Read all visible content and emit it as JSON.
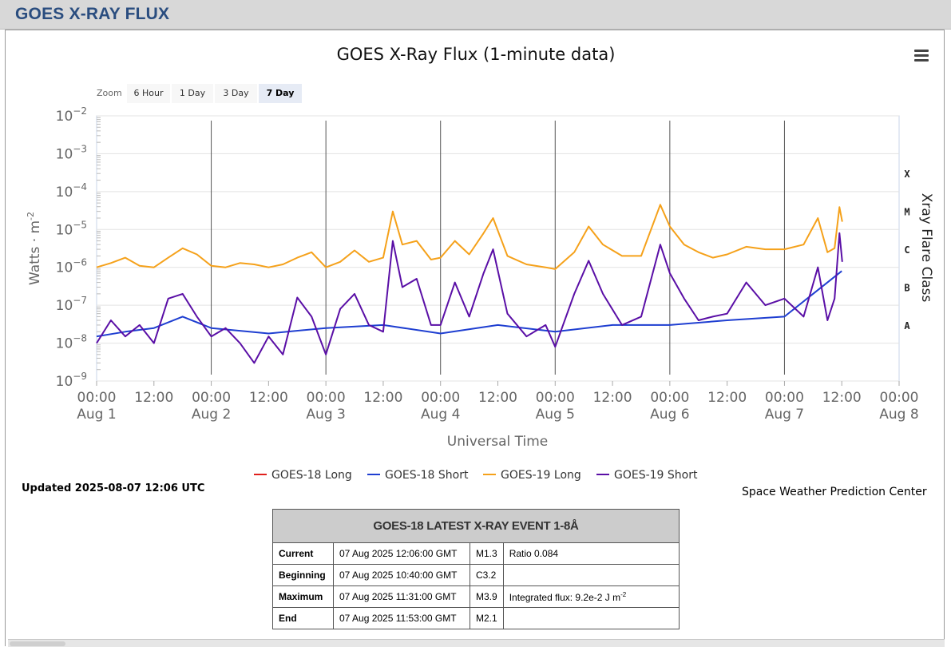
{
  "header": {
    "title": "GOES X-RAY FLUX"
  },
  "zoom": {
    "label": "Zoom",
    "buttons": [
      "6 Hour",
      "1 Day",
      "3 Day",
      "7 Day"
    ],
    "active": "7 Day"
  },
  "updated": "Updated 2025-08-07 12:06 UTC",
  "source": "Space Weather Prediction Center",
  "colors": {
    "g18_long": "#e0201c",
    "g18_short": "#1f3fd1",
    "g19_long": "#f5a11a",
    "g19_short": "#5a0fa6",
    "header": "#2a4d7f"
  },
  "chart_data": {
    "type": "line",
    "title": "GOES X-Ray Flux (1-minute data)",
    "xlabel": "Universal Time",
    "ylabel": "Watts · m",
    "ylabel_sup": "-2",
    "y2label": "Xray Flare Class",
    "yscale": "log",
    "ylim": [
      1e-09,
      0.01
    ],
    "xlim": [
      "2025-08-01T00:00",
      "2025-08-08T00:00"
    ],
    "y_ticks": [
      {
        "v": 0.01,
        "base": "10",
        "exp": "−2"
      },
      {
        "v": 0.001,
        "base": "10",
        "exp": "−3"
      },
      {
        "v": 0.0001,
        "base": "10",
        "exp": "−4"
      },
      {
        "v": 1e-05,
        "base": "10",
        "exp": "−5"
      },
      {
        "v": 1e-06,
        "base": "10",
        "exp": "−6"
      },
      {
        "v": 1e-07,
        "base": "10",
        "exp": "−7"
      },
      {
        "v": 1e-08,
        "base": "10",
        "exp": "−8"
      },
      {
        "v": 1e-09,
        "base": "10",
        "exp": "−9"
      }
    ],
    "x_ticks": [
      {
        "t": "2025-08-01T00:00",
        "time": "00:00",
        "date": "Aug 1"
      },
      {
        "t": "2025-08-01T12:00",
        "time": "12:00",
        "date": ""
      },
      {
        "t": "2025-08-02T00:00",
        "time": "00:00",
        "date": "Aug 2"
      },
      {
        "t": "2025-08-02T12:00",
        "time": "12:00",
        "date": ""
      },
      {
        "t": "2025-08-03T00:00",
        "time": "00:00",
        "date": "Aug 3"
      },
      {
        "t": "2025-08-03T12:00",
        "time": "12:00",
        "date": ""
      },
      {
        "t": "2025-08-04T00:00",
        "time": "00:00",
        "date": "Aug 4"
      },
      {
        "t": "2025-08-04T12:00",
        "time": "12:00",
        "date": ""
      },
      {
        "t": "2025-08-05T00:00",
        "time": "00:00",
        "date": "Aug 5"
      },
      {
        "t": "2025-08-05T12:00",
        "time": "12:00",
        "date": ""
      },
      {
        "t": "2025-08-06T00:00",
        "time": "00:00",
        "date": "Aug 6"
      },
      {
        "t": "2025-08-06T12:00",
        "time": "12:00",
        "date": ""
      },
      {
        "t": "2025-08-07T00:00",
        "time": "00:00",
        "date": "Aug 7"
      },
      {
        "t": "2025-08-07T12:00",
        "time": "12:00",
        "date": ""
      },
      {
        "t": "2025-08-08T00:00",
        "time": "00:00",
        "date": "Aug 8"
      }
    ],
    "flare_classes": [
      {
        "label": "X",
        "v": 0.0003
      },
      {
        "label": "M",
        "v": 3e-05
      },
      {
        "label": "C",
        "v": 3e-06
      },
      {
        "label": "B",
        "v": 3e-07
      },
      {
        "label": "A",
        "v": 3e-08
      }
    ],
    "legend_position": "bottom",
    "series": [
      {
        "name": "GOES-18 Long",
        "color": "#e0201c",
        "points": []
      },
      {
        "name": "GOES-18 Short",
        "color": "#1f3fd1",
        "points": [
          [
            "2025-08-01T00:00",
            1.5e-08
          ],
          [
            "2025-08-01T06:00",
            2e-08
          ],
          [
            "2025-08-01T12:00",
            2.5e-08
          ],
          [
            "2025-08-01T18:00",
            5e-08
          ],
          [
            "2025-08-02T00:00",
            2.5e-08
          ],
          [
            "2025-08-02T12:00",
            1.8e-08
          ],
          [
            "2025-08-03T00:00",
            2.5e-08
          ],
          [
            "2025-08-03T12:00",
            3e-08
          ],
          [
            "2025-08-04T00:00",
            1.8e-08
          ],
          [
            "2025-08-04T12:00",
            3e-08
          ],
          [
            "2025-08-05T00:00",
            2e-08
          ],
          [
            "2025-08-05T12:00",
            3e-08
          ],
          [
            "2025-08-06T00:00",
            3e-08
          ],
          [
            "2025-08-06T12:00",
            4e-08
          ],
          [
            "2025-08-07T00:00",
            5e-08
          ],
          [
            "2025-08-07T12:00",
            8e-07
          ]
        ]
      },
      {
        "name": "GOES-19 Long",
        "color": "#f5a11a",
        "points": [
          [
            "2025-08-01T00:00",
            1e-06
          ],
          [
            "2025-08-01T03:00",
            1.3e-06
          ],
          [
            "2025-08-01T06:00",
            1.8e-06
          ],
          [
            "2025-08-01T09:00",
            1.1e-06
          ],
          [
            "2025-08-01T12:00",
            1e-06
          ],
          [
            "2025-08-01T15:00",
            1.8e-06
          ],
          [
            "2025-08-01T18:00",
            3.2e-06
          ],
          [
            "2025-08-01T21:00",
            2.2e-06
          ],
          [
            "2025-08-02T00:00",
            1.1e-06
          ],
          [
            "2025-08-02T03:00",
            1e-06
          ],
          [
            "2025-08-02T06:00",
            1.3e-06
          ],
          [
            "2025-08-02T09:00",
            1.2e-06
          ],
          [
            "2025-08-02T12:00",
            1e-06
          ],
          [
            "2025-08-02T15:00",
            1.2e-06
          ],
          [
            "2025-08-02T18:00",
            1.8e-06
          ],
          [
            "2025-08-02T21:00",
            2.5e-06
          ],
          [
            "2025-08-03T00:00",
            1e-06
          ],
          [
            "2025-08-03T03:00",
            1.4e-06
          ],
          [
            "2025-08-03T06:00",
            2.8e-06
          ],
          [
            "2025-08-03T09:00",
            1.4e-06
          ],
          [
            "2025-08-03T12:00",
            1.8e-06
          ],
          [
            "2025-08-03T14:00",
            3e-05
          ],
          [
            "2025-08-03T16:00",
            4e-06
          ],
          [
            "2025-08-03T19:00",
            5e-06
          ],
          [
            "2025-08-03T22:00",
            1.6e-06
          ],
          [
            "2025-08-04T00:00",
            1.8e-06
          ],
          [
            "2025-08-04T03:00",
            5e-06
          ],
          [
            "2025-08-04T06:00",
            2.2e-06
          ],
          [
            "2025-08-04T09:00",
            8e-06
          ],
          [
            "2025-08-04T11:00",
            2e-05
          ],
          [
            "2025-08-04T14:00",
            2e-06
          ],
          [
            "2025-08-04T18:00",
            1.2e-06
          ],
          [
            "2025-08-04T22:00",
            1e-06
          ],
          [
            "2025-08-05T00:00",
            9e-07
          ],
          [
            "2025-08-05T04:00",
            2.5e-06
          ],
          [
            "2025-08-05T07:00",
            1.2e-05
          ],
          [
            "2025-08-05T10:00",
            4e-06
          ],
          [
            "2025-08-05T14:00",
            2e-06
          ],
          [
            "2025-08-05T18:00",
            2e-06
          ],
          [
            "2025-08-05T22:00",
            4.5e-05
          ],
          [
            "2025-08-06T00:00",
            1.2e-05
          ],
          [
            "2025-08-06T03:00",
            4e-06
          ],
          [
            "2025-08-06T06:00",
            2.5e-06
          ],
          [
            "2025-08-06T09:00",
            1.8e-06
          ],
          [
            "2025-08-06T12:00",
            2.2e-06
          ],
          [
            "2025-08-06T16:00",
            3.5e-06
          ],
          [
            "2025-08-06T20:00",
            3e-06
          ],
          [
            "2025-08-07T00:00",
            3e-06
          ],
          [
            "2025-08-07T04:00",
            4e-06
          ],
          [
            "2025-08-07T07:00",
            2e-05
          ],
          [
            "2025-08-07T09:00",
            2.5e-06
          ],
          [
            "2025-08-07T10:30",
            3.2e-06
          ],
          [
            "2025-08-07T11:31",
            3.9e-05
          ],
          [
            "2025-08-07T12:06",
            1.6e-05
          ]
        ]
      },
      {
        "name": "GOES-19 Short",
        "color": "#5a0fa6",
        "points": [
          [
            "2025-08-01T00:00",
            1e-08
          ],
          [
            "2025-08-01T03:00",
            4e-08
          ],
          [
            "2025-08-01T06:00",
            1.5e-08
          ],
          [
            "2025-08-01T09:00",
            3e-08
          ],
          [
            "2025-08-01T12:00",
            1e-08
          ],
          [
            "2025-08-01T15:00",
            1.5e-07
          ],
          [
            "2025-08-01T18:00",
            2e-07
          ],
          [
            "2025-08-01T21:00",
            5e-08
          ],
          [
            "2025-08-02T00:00",
            1.5e-08
          ],
          [
            "2025-08-02T03:00",
            2.5e-08
          ],
          [
            "2025-08-02T06:00",
            1e-08
          ],
          [
            "2025-08-02T09:00",
            3e-09
          ],
          [
            "2025-08-02T12:00",
            1.5e-08
          ],
          [
            "2025-08-02T15:00",
            5e-09
          ],
          [
            "2025-08-02T18:00",
            1.6e-07
          ],
          [
            "2025-08-02T21:00",
            5e-08
          ],
          [
            "2025-08-03T00:00",
            5e-09
          ],
          [
            "2025-08-03T03:00",
            8e-08
          ],
          [
            "2025-08-03T06:00",
            2e-07
          ],
          [
            "2025-08-03T09:00",
            3e-08
          ],
          [
            "2025-08-03T12:00",
            2e-08
          ],
          [
            "2025-08-03T14:00",
            5e-06
          ],
          [
            "2025-08-03T16:00",
            3e-07
          ],
          [
            "2025-08-03T19:00",
            5e-07
          ],
          [
            "2025-08-03T22:00",
            3e-08
          ],
          [
            "2025-08-04T00:00",
            3e-08
          ],
          [
            "2025-08-04T03:00",
            4e-07
          ],
          [
            "2025-08-04T06:00",
            5e-08
          ],
          [
            "2025-08-04T09:00",
            7e-07
          ],
          [
            "2025-08-04T11:00",
            3e-06
          ],
          [
            "2025-08-04T14:00",
            6e-08
          ],
          [
            "2025-08-04T18:00",
            1.5e-08
          ],
          [
            "2025-08-04T22:00",
            3e-08
          ],
          [
            "2025-08-05T00:00",
            8e-09
          ],
          [
            "2025-08-05T04:00",
            2e-07
          ],
          [
            "2025-08-05T07:00",
            1.5e-06
          ],
          [
            "2025-08-05T10:00",
            2e-07
          ],
          [
            "2025-08-05T14:00",
            3e-08
          ],
          [
            "2025-08-05T18:00",
            5e-08
          ],
          [
            "2025-08-05T22:00",
            4e-06
          ],
          [
            "2025-08-06T00:00",
            7e-07
          ],
          [
            "2025-08-06T03:00",
            1.5e-07
          ],
          [
            "2025-08-06T06:00",
            4e-08
          ],
          [
            "2025-08-06T09:00",
            5e-08
          ],
          [
            "2025-08-06T12:00",
            6e-08
          ],
          [
            "2025-08-06T16:00",
            4e-07
          ],
          [
            "2025-08-06T20:00",
            1e-07
          ],
          [
            "2025-08-07T00:00",
            1.5e-07
          ],
          [
            "2025-08-07T04:00",
            5e-08
          ],
          [
            "2025-08-07T07:00",
            1e-06
          ],
          [
            "2025-08-07T09:00",
            4e-08
          ],
          [
            "2025-08-07T10:30",
            1.5e-07
          ],
          [
            "2025-08-07T11:31",
            8e-06
          ],
          [
            "2025-08-07T12:06",
            1.4e-06
          ]
        ]
      }
    ]
  },
  "event_table": {
    "title": "GOES-18 LATEST X-RAY EVENT 1-8Å",
    "rows": [
      {
        "label": "Current",
        "time": "07 Aug 2025 12:06:00 GMT",
        "class": "M1.3",
        "extra": "Ratio 0.084",
        "extra_sup": ""
      },
      {
        "label": "Beginning",
        "time": "07 Aug 2025 10:40:00 GMT",
        "class": "C3.2",
        "extra": "",
        "extra_sup": ""
      },
      {
        "label": "Maximum",
        "time": "07 Aug 2025 11:31:00 GMT",
        "class": "M3.9",
        "extra": "Integrated flux: 9.2e-2 J m",
        "extra_sup": "-2"
      },
      {
        "label": "End",
        "time": "07 Aug 2025 11:53:00 GMT",
        "class": "M2.1",
        "extra": "",
        "extra_sup": ""
      }
    ]
  }
}
